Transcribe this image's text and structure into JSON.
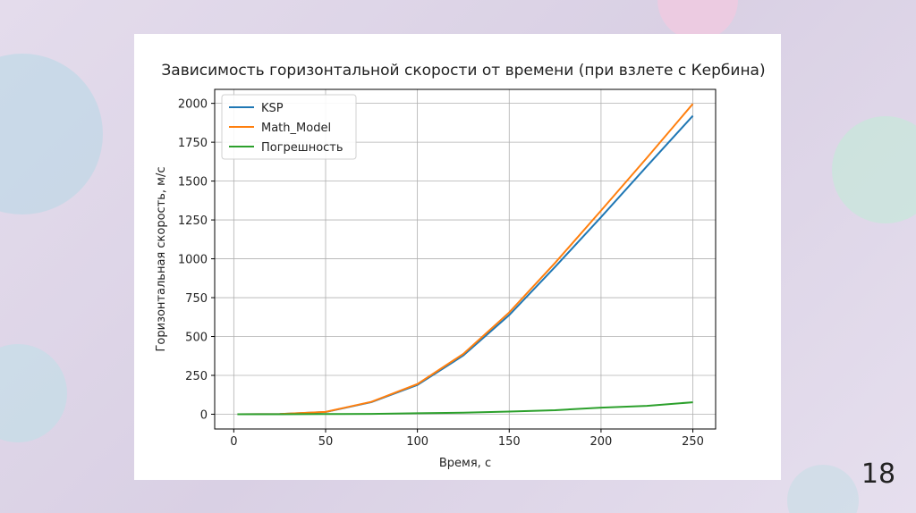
{
  "chart_data": {
    "type": "line",
    "title": "Зависимость горизонтальной скорости от времени (при взлете с Кербина)",
    "x_label": "Время, с",
    "y_label": "Горизонтальная скорость, м/с",
    "x": [
      2,
      25,
      50,
      75,
      100,
      125,
      150,
      175,
      200,
      225,
      250
    ],
    "series": [
      {
        "name": "KSP",
        "color": "#1f77b4",
        "values": [
          0,
          1,
          14,
          78,
          188,
          378,
          638,
          948,
          1268,
          1596,
          1920
        ]
      },
      {
        "name": "Math_Model",
        "color": "#ff7f0e",
        "values": [
          0,
          1,
          15,
          80,
          194,
          388,
          655,
          974,
          1310,
          1650,
          1997
        ]
      },
      {
        "name": "Погрешность",
        "color": "#2ca02c",
        "values": [
          0,
          0,
          1,
          2,
          6,
          10,
          17,
          26,
          42,
          54,
          77
        ]
      }
    ],
    "xlim": [
      -10.4,
      262.4
    ],
    "xticks": [
      0,
      50,
      100,
      150,
      200,
      250
    ],
    "ylim": [
      -95,
      2090
    ],
    "yticks": [
      0,
      250,
      500,
      750,
      1000,
      1250,
      1500,
      1750,
      2000
    ],
    "grid": true,
    "legend": "upper-left"
  },
  "slide_number": 18
}
